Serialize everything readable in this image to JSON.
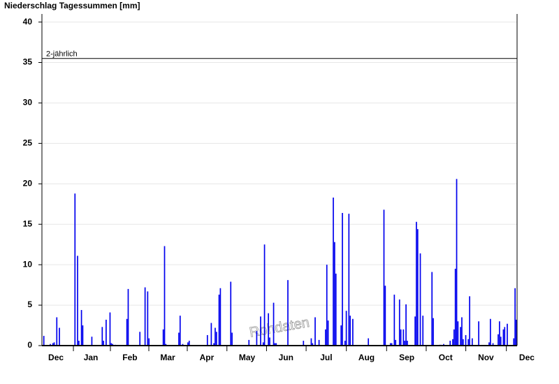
{
  "chart_data": {
    "type": "bar",
    "title": "Niederschlag Tagessummen [mm]",
    "color": "#0000ee",
    "grid": true,
    "annotation": {
      "label": "2-jährlich",
      "value": 35.5
    },
    "watermark": "Rohdaten",
    "xlim": [
      0,
      366
    ],
    "xticks": [
      {
        "value": 10.8,
        "label": "Dec"
      },
      {
        "value": 37.7,
        "label": "Jan"
      },
      {
        "value": 67.8,
        "label": "Feb"
      },
      {
        "value": 96.9,
        "label": "Mar"
      },
      {
        "value": 127,
        "label": "Apr"
      },
      {
        "value": 158,
        "label": "May"
      },
      {
        "value": 188,
        "label": "Jun"
      },
      {
        "value": 219,
        "label": "Jul"
      },
      {
        "value": 250,
        "label": "Aug"
      },
      {
        "value": 281,
        "label": "Sep"
      },
      {
        "value": 311,
        "label": "Oct"
      },
      {
        "value": 342,
        "label": "Nov"
      },
      {
        "value": 373.5,
        "label": "Dec"
      }
    ],
    "ylim": [
      0,
      41
    ],
    "yticks": [
      0,
      5,
      10,
      15,
      20,
      25,
      30,
      35,
      40
    ],
    "x": [
      1,
      6,
      8,
      9,
      11,
      13,
      25,
      27,
      28,
      30,
      31,
      38,
      46,
      47,
      49,
      52,
      53,
      54,
      56,
      65,
      66,
      75,
      79,
      81,
      82,
      93,
      94,
      95,
      105,
      106,
      108,
      112,
      113,
      127,
      130,
      132,
      133,
      134,
      136,
      137,
      145,
      146,
      159,
      165,
      168,
      170,
      171,
      174,
      175,
      178,
      179,
      180,
      189,
      201,
      207,
      208,
      210,
      213,
      218,
      219,
      220,
      224,
      225,
      226,
      230,
      231,
      233,
      234,
      236,
      237,
      239,
      251,
      263,
      264,
      268,
      269,
      271,
      272,
      275,
      276,
      278,
      279,
      280,
      281,
      287,
      288,
      289,
      291,
      293,
      300,
      301,
      306,
      307,
      309,
      314,
      316,
      317,
      318,
      319,
      320,
      322,
      323,
      324,
      326,
      328,
      329,
      331,
      336,
      344,
      345,
      347,
      351,
      352,
      353,
      355,
      356,
      358,
      363,
      364,
      365
    ],
    "values": [
      1.2,
      0.2,
      0.3,
      0.4,
      3.5,
      2.2,
      18.8,
      11.1,
      0.6,
      4.4,
      2.5,
      1.1,
      2.3,
      0.6,
      3.2,
      4.1,
      0.3,
      0.2,
      0.1,
      3.3,
      7.0,
      1.7,
      7.2,
      6.7,
      0.9,
      2.0,
      12.3,
      0.2,
      1.6,
      3.7,
      0.2,
      0.4,
      0.6,
      1.3,
      2.8,
      0.3,
      2.2,
      1.7,
      6.3,
      7.1,
      7.9,
      1.6,
      0.7,
      1.8,
      3.6,
      0.4,
      12.5,
      4.0,
      1.0,
      5.3,
      0.3,
      0.3,
      8.1,
      0.6,
      0.9,
      0.3,
      3.5,
      0.7,
      2.0,
      10.0,
      3.1,
      18.3,
      12.8,
      8.9,
      2.5,
      16.4,
      0.6,
      4.3,
      16.3,
      3.7,
      3.3,
      0.9,
      16.8,
      7.4,
      0.3,
      0.3,
      6.3,
      0.7,
      5.7,
      2.0,
      2.0,
      0.6,
      5.1,
      0.6,
      3.6,
      15.3,
      14.4,
      11.4,
      3.7,
      9.1,
      3.4,
      0.1,
      0.1,
      0.2,
      0.6,
      0.8,
      2.0,
      9.5,
      20.6,
      3.0,
      2.3,
      3.5,
      0.8,
      1.3,
      0.8,
      6.1,
      0.9,
      3.0,
      0.4,
      3.3,
      0.3,
      1.4,
      3.0,
      1.1,
      2.0,
      2.3,
      2.7,
      0.9,
      7.1,
      3.2
    ]
  }
}
